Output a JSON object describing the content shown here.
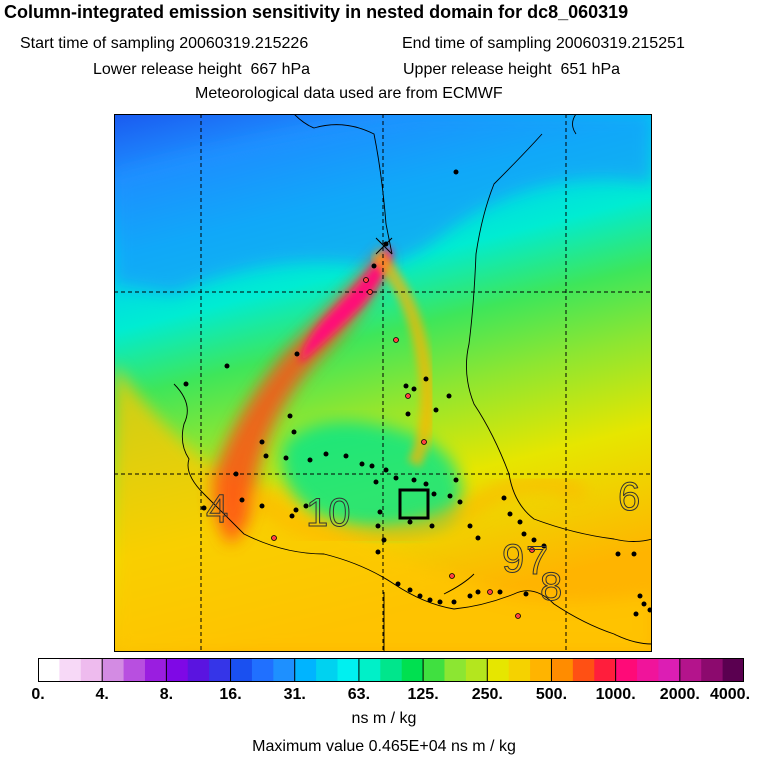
{
  "title": "Column-integrated emission sensitivity in nested domain for dc8_060319",
  "sampling": {
    "start_label": "Start time of sampling",
    "start_value": "20060319.215226",
    "end_label": "End time of sampling",
    "end_value": "20060319.215251"
  },
  "release": {
    "lower_label": "Lower release height",
    "lower_value": "667 hPa",
    "upper_label": "Upper release height",
    "upper_value": "651 hPa"
  },
  "met_note": "Meteorological data used are from ECMWF",
  "map_labels": [
    "4",
    "10",
    "9",
    "7",
    "8",
    "6"
  ],
  "colorbar": {
    "colors": [
      "#ffffff",
      "#f7d9f7",
      "#eebbee",
      "#d38be3",
      "#b84fe0",
      "#9a1ee0",
      "#7f08e6",
      "#5a14e0",
      "#3535e8",
      "#1a50f0",
      "#2070ff",
      "#1e90ff",
      "#00b4ff",
      "#00d2f0",
      "#00f0f0",
      "#00f0c8",
      "#00e68c",
      "#00e050",
      "#40e040",
      "#8ce632",
      "#b4e61e",
      "#e6e600",
      "#f5d200",
      "#ffb400",
      "#ff8c00",
      "#ff5014",
      "#ff1e3c",
      "#ff0a78",
      "#f0149b",
      "#dc1eb4",
      "#b4148c",
      "#8c0a6e",
      "#5a0050"
    ],
    "tick_labels": [
      "0.",
      "4.",
      "8.",
      "16.",
      "31.",
      "63.",
      "125.",
      "250.",
      "500.",
      "1000.",
      "2000.",
      "4000."
    ]
  },
  "units": "ns m / kg",
  "max_label": "Maximum value",
  "max_value": "0.465E+04 ns m / kg"
}
